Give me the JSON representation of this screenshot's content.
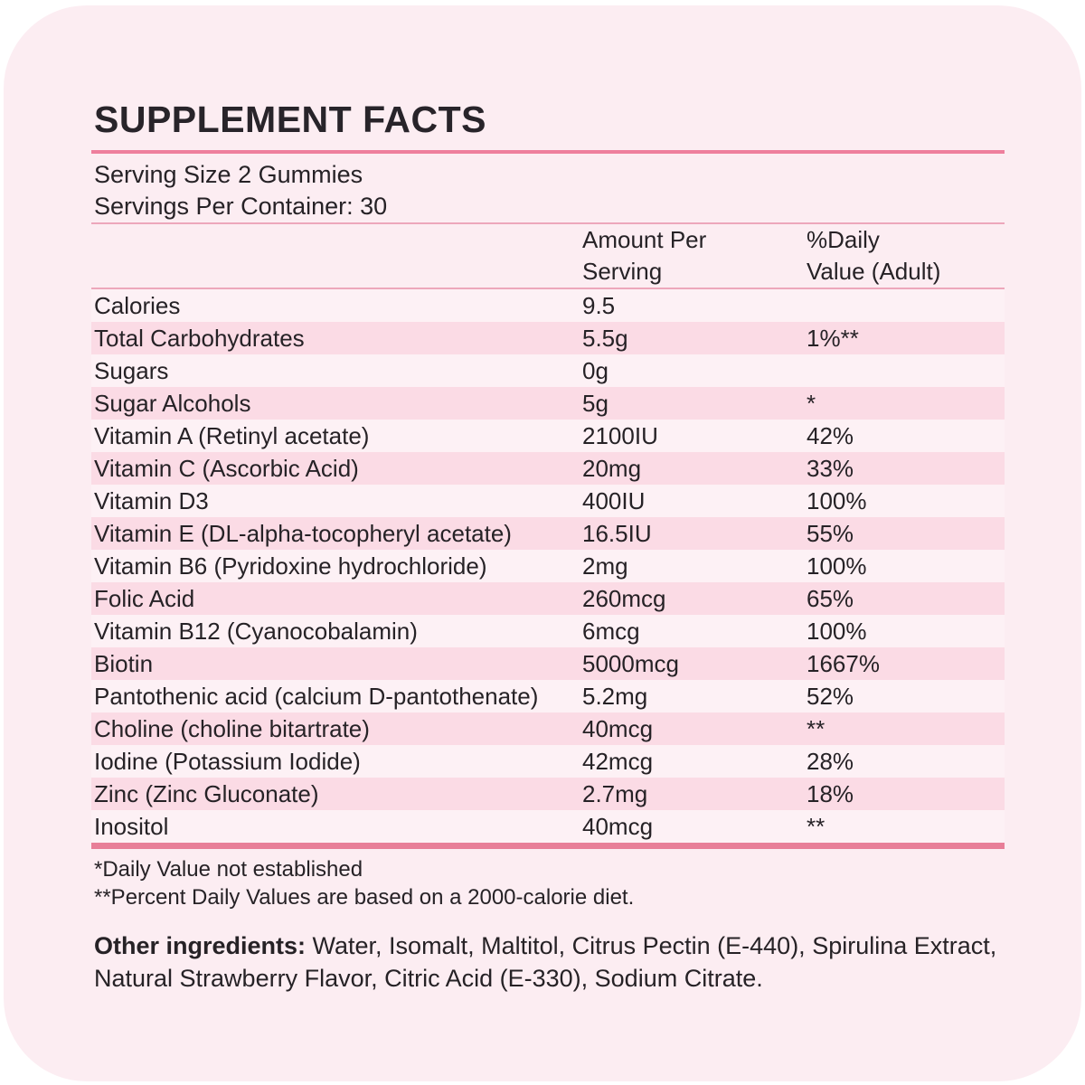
{
  "panel": {
    "title": "SUPPLEMENT FACTS",
    "serving_size": "Serving Size 2 Gummies",
    "servings_per_container": "Servings Per Container: 30",
    "columns": {
      "amount_line1": "Amount Per",
      "amount_line2": "Serving",
      "dv_line1": "%Daily",
      "dv_line2": "Value (Adult)"
    },
    "rows": [
      {
        "name": "Calories",
        "amount": "9.5",
        "dv": ""
      },
      {
        "name": "Total Carbohydrates",
        "amount": "5.5g",
        "dv": "1%**"
      },
      {
        "name": "Sugars",
        "amount": "0g",
        "dv": ""
      },
      {
        "name": "Sugar Alcohols",
        "amount": "5g",
        "dv": "*"
      },
      {
        "name": "Vitamin A (Retinyl acetate)",
        "amount": "2100IU",
        "dv": "42%"
      },
      {
        "name": "Vitamin C (Ascorbic Acid)",
        "amount": "20mg",
        "dv": "33%"
      },
      {
        "name": "Vitamin D3",
        "amount": "400IU",
        "dv": "100%"
      },
      {
        "name": "Vitamin E (DL-alpha-tocopheryl acetate)",
        "amount": "16.5IU",
        "dv": "55%"
      },
      {
        "name": "Vitamin B6 (Pyridoxine hydrochloride)",
        "amount": "2mg",
        "dv": "100%"
      },
      {
        "name": "Folic Acid",
        "amount": "260mcg",
        "dv": "65%"
      },
      {
        "name": "Vitamin B12 (Cyanocobalamin)",
        "amount": "6mcg",
        "dv": "100%"
      },
      {
        "name": "Biotin",
        "amount": "5000mcg",
        "dv": "1667%"
      },
      {
        "name": "Pantothenic acid (calcium D-pantothenate)",
        "amount": "5.2mg",
        "dv": "52%"
      },
      {
        "name": "Choline (choline bitartrate)",
        "amount": "40mcg",
        "dv": "**"
      },
      {
        "name": "Iodine (Potassium Iodide)",
        "amount": "42mcg",
        "dv": "28%"
      },
      {
        "name": "Zinc (Zinc Gluconate)",
        "amount": "2.7mg",
        "dv": "18%"
      },
      {
        "name": "Inositol",
        "amount": "40mcg",
        "dv": "**"
      }
    ],
    "footnotes": [
      "*Daily Value not established",
      "**Percent Daily Values are based on a 2000-calorie diet."
    ],
    "other_ingredients_label": "Other ingredients:",
    "other_ingredients_text": " Water, Isomalt, Maltitol, Citrus Pectin (E-440), Spirulina Extract, Natural Strawberry Flavor, Citric Acid (E-330), Sodium Citrate."
  },
  "colors": {
    "card_bg": "#fcedf2",
    "row_pink": "#fbdbe5",
    "row_light": "#fdf1f5",
    "accent_rule": "#ee7f9d",
    "thin_rule": "#eda7bb",
    "bar_rule": "#e87e98",
    "text": "#262226"
  }
}
